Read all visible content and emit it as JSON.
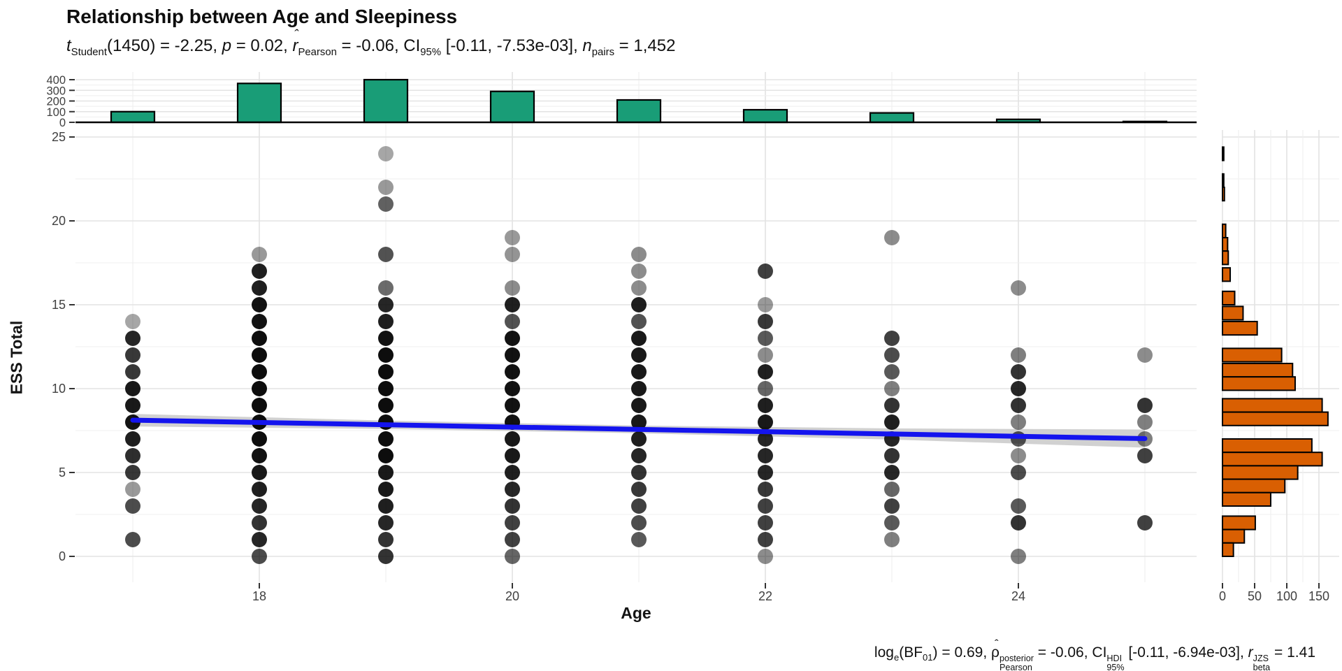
{
  "title": "Relationship between Age and Sleepiness",
  "subtitle_parts": [
    {
      "k": "i",
      "t": "t"
    },
    {
      "k": "sub",
      "t": "Student"
    },
    {
      "k": "n",
      "t": "(1450) = -2.25, "
    },
    {
      "k": "i",
      "t": "p"
    },
    {
      "k": "n",
      "t": " = 0.02, "
    },
    {
      "k": "hat",
      "t": "r",
      "italic": true
    },
    {
      "k": "sub",
      "t": "Pearson"
    },
    {
      "k": "n",
      "t": " = -0.06, CI"
    },
    {
      "k": "sub",
      "t": "95%"
    },
    {
      "k": "n",
      "t": " [-0.11, -7.53e-03], "
    },
    {
      "k": "i",
      "t": "n"
    },
    {
      "k": "sub",
      "t": "pairs"
    },
    {
      "k": "n",
      "t": " = 1,452"
    }
  ],
  "caption_parts": [
    {
      "k": "n",
      "t": "log"
    },
    {
      "k": "sub",
      "t": "e"
    },
    {
      "k": "n",
      "t": "(BF"
    },
    {
      "k": "sub",
      "t": "01"
    },
    {
      "k": "n",
      "t": ") = 0.69, "
    },
    {
      "k": "hat",
      "t": "ρ",
      "italic": false
    },
    {
      "k": "stack",
      "sup": "posterior",
      "sub": "Pearson"
    },
    {
      "k": "n",
      "t": " = -0.06, CI"
    },
    {
      "k": "stack",
      "sup": "HDI",
      "sub": "95%"
    },
    {
      "k": "n",
      "t": " [-0.11, -6.94e-03], "
    },
    {
      "k": "i",
      "t": "r"
    },
    {
      "k": "stack",
      "sup": "JZS",
      "sub": "beta"
    },
    {
      "k": "n",
      "t": " = 1.41"
    }
  ],
  "colors": {
    "top_hist_fill": "#199d77",
    "right_hist_fill": "#d95f02",
    "bar_outline": "#000000",
    "regression_line": "#1414ee",
    "confidence_band": "#c9c9c9",
    "point_color": "#000000",
    "grid_major": "#e3e3e3",
    "grid_minor": "#efefef",
    "tick_label": "#404040",
    "axis_line": "#000000"
  },
  "chart_data": {
    "type": "scatter",
    "title": "Relationship between Age and Sleepiness",
    "xlabel": "Age",
    "ylabel": "ESS Total",
    "x_ticks": [
      18,
      20,
      22,
      24
    ],
    "x_minor": [
      17,
      19,
      21,
      23,
      25
    ],
    "y_ticks": [
      0,
      5,
      10,
      15,
      20,
      25
    ],
    "y_minor": [
      2.5,
      7.5,
      12.5,
      17.5,
      22.5
    ],
    "x_range": [
      16.55,
      25.4
    ],
    "y_range": [
      -1.5,
      25.4
    ],
    "grid": true,
    "n_pairs": 1452,
    "points": [
      [
        17,
        14,
        0.35
      ],
      [
        17,
        13,
        0.85
      ],
      [
        17,
        12,
        0.78
      ],
      [
        17,
        11,
        0.78
      ],
      [
        17,
        10,
        0.9
      ],
      [
        17,
        9,
        0.9
      ],
      [
        17,
        8,
        0.92
      ],
      [
        17,
        7,
        0.88
      ],
      [
        17,
        6,
        0.82
      ],
      [
        17,
        5,
        0.78
      ],
      [
        17,
        4,
        0.4
      ],
      [
        17,
        3,
        0.7
      ],
      [
        17,
        1,
        0.7
      ],
      [
        18,
        18,
        0.4
      ],
      [
        18,
        17,
        0.88
      ],
      [
        18,
        16,
        0.88
      ],
      [
        18,
        15,
        0.93
      ],
      [
        18,
        14,
        0.93
      ],
      [
        18,
        13,
        0.95
      ],
      [
        18,
        12,
        0.95
      ],
      [
        18,
        11,
        0.95
      ],
      [
        18,
        10,
        0.95
      ],
      [
        18,
        9,
        0.95
      ],
      [
        18,
        8,
        0.95
      ],
      [
        18,
        7,
        0.95
      ],
      [
        18,
        6,
        0.93
      ],
      [
        18,
        5,
        0.9
      ],
      [
        18,
        4,
        0.88
      ],
      [
        18,
        3,
        0.85
      ],
      [
        18,
        2,
        0.8
      ],
      [
        18,
        1,
        0.85
      ],
      [
        18,
        0,
        0.7
      ],
      [
        19,
        24,
        0.35
      ],
      [
        19,
        22,
        0.4
      ],
      [
        19,
        21,
        0.62
      ],
      [
        19,
        18,
        0.68
      ],
      [
        19,
        16,
        0.58
      ],
      [
        19,
        15,
        0.85
      ],
      [
        19,
        14,
        0.88
      ],
      [
        19,
        13,
        0.93
      ],
      [
        19,
        12,
        0.95
      ],
      [
        19,
        11,
        0.95
      ],
      [
        19,
        10,
        0.95
      ],
      [
        19,
        9,
        0.95
      ],
      [
        19,
        8,
        0.95
      ],
      [
        19,
        7,
        0.95
      ],
      [
        19,
        6,
        0.95
      ],
      [
        19,
        5,
        0.9
      ],
      [
        19,
        4,
        0.9
      ],
      [
        19,
        3,
        0.88
      ],
      [
        19,
        2,
        0.85
      ],
      [
        19,
        1,
        0.8
      ],
      [
        19,
        0,
        0.8
      ],
      [
        20,
        19,
        0.4
      ],
      [
        20,
        18,
        0.42
      ],
      [
        20,
        16,
        0.45
      ],
      [
        20,
        15,
        0.88
      ],
      [
        20,
        14,
        0.68
      ],
      [
        20,
        13,
        0.93
      ],
      [
        20,
        12,
        0.93
      ],
      [
        20,
        11,
        0.93
      ],
      [
        20,
        10,
        0.93
      ],
      [
        20,
        9,
        0.93
      ],
      [
        20,
        8,
        0.93
      ],
      [
        20,
        7,
        0.9
      ],
      [
        20,
        6,
        0.9
      ],
      [
        20,
        5,
        0.88
      ],
      [
        20,
        4,
        0.85
      ],
      [
        20,
        3,
        0.8
      ],
      [
        20,
        2,
        0.75
      ],
      [
        20,
        1,
        0.75
      ],
      [
        20,
        0,
        0.6
      ],
      [
        21,
        18,
        0.45
      ],
      [
        21,
        17,
        0.45
      ],
      [
        21,
        16,
        0.45
      ],
      [
        21,
        15,
        0.88
      ],
      [
        21,
        14,
        0.68
      ],
      [
        21,
        13,
        0.9
      ],
      [
        21,
        12,
        0.9
      ],
      [
        21,
        11,
        0.9
      ],
      [
        21,
        10,
        0.9
      ],
      [
        21,
        9,
        0.9
      ],
      [
        21,
        8,
        0.9
      ],
      [
        21,
        7,
        0.88
      ],
      [
        21,
        6,
        0.85
      ],
      [
        21,
        5,
        0.8
      ],
      [
        21,
        4,
        0.78
      ],
      [
        21,
        3,
        0.75
      ],
      [
        21,
        2,
        0.7
      ],
      [
        21,
        1,
        0.65
      ],
      [
        22,
        17,
        0.75
      ],
      [
        22,
        15,
        0.4
      ],
      [
        22,
        14,
        0.78
      ],
      [
        22,
        13,
        0.65
      ],
      [
        22,
        12,
        0.45
      ],
      [
        22,
        11,
        0.88
      ],
      [
        22,
        10,
        0.6
      ],
      [
        22,
        9,
        0.88
      ],
      [
        22,
        8,
        0.9
      ],
      [
        22,
        7,
        0.85
      ],
      [
        22,
        6,
        0.85
      ],
      [
        22,
        5,
        0.85
      ],
      [
        22,
        4,
        0.78
      ],
      [
        22,
        3,
        0.75
      ],
      [
        22,
        2,
        0.75
      ],
      [
        22,
        1,
        0.75
      ],
      [
        22,
        0,
        0.45
      ],
      [
        23,
        19,
        0.45
      ],
      [
        23,
        13,
        0.75
      ],
      [
        23,
        12,
        0.7
      ],
      [
        23,
        11,
        0.65
      ],
      [
        23,
        10,
        0.5
      ],
      [
        23,
        9,
        0.8
      ],
      [
        23,
        8,
        0.88
      ],
      [
        23,
        7,
        0.85
      ],
      [
        23,
        6,
        0.8
      ],
      [
        23,
        5,
        0.85
      ],
      [
        23,
        4,
        0.6
      ],
      [
        23,
        3,
        0.75
      ],
      [
        23,
        2,
        0.65
      ],
      [
        23,
        1,
        0.5
      ],
      [
        24,
        16,
        0.45
      ],
      [
        24,
        12,
        0.5
      ],
      [
        24,
        11,
        0.8
      ],
      [
        24,
        10,
        0.85
      ],
      [
        24,
        9,
        0.8
      ],
      [
        24,
        8,
        0.5
      ],
      [
        24,
        7,
        0.65
      ],
      [
        24,
        6,
        0.45
      ],
      [
        24,
        5,
        0.7
      ],
      [
        24,
        3,
        0.65
      ],
      [
        24,
        2,
        0.8
      ],
      [
        24,
        0,
        0.5
      ],
      [
        25,
        12,
        0.45
      ],
      [
        25,
        9,
        0.8
      ],
      [
        25,
        8,
        0.5
      ],
      [
        25,
        7,
        0.5
      ],
      [
        25,
        6,
        0.75
      ],
      [
        25,
        2,
        0.75
      ]
    ],
    "regression": {
      "x_start": 17,
      "x_end": 25,
      "y_start": 8.12,
      "y_end": 7.02,
      "band": [
        {
          "age": 17,
          "half": 9
        },
        {
          "age": 19,
          "half": 6
        },
        {
          "age": 21,
          "half": 5.5
        },
        {
          "age": 23,
          "half": 8
        },
        {
          "age": 25,
          "half": 13
        }
      ]
    },
    "top_histogram": {
      "type": "bar",
      "categories": [
        17,
        18,
        19,
        20,
        21,
        22,
        23,
        24,
        25
      ],
      "values": [
        100,
        365,
        400,
        290,
        210,
        118,
        88,
        28,
        8
      ],
      "y_ticks": [
        0,
        100,
        200,
        300,
        400
      ],
      "y_minor": [
        50,
        150,
        250,
        350
      ]
    },
    "right_histogram": {
      "type": "bar",
      "orientation": "horizontal",
      "x_ticks": [
        0,
        50,
        100,
        150
      ],
      "x_minor": [
        25,
        75,
        125
      ],
      "bars": [
        {
          "ess": 24.0,
          "count": 2
        },
        {
          "ess": 22.4,
          "count": 2
        },
        {
          "ess": 21.6,
          "count": 3
        },
        {
          "ess": 19.4,
          "count": 5
        },
        {
          "ess": 18.6,
          "count": 8
        },
        {
          "ess": 17.8,
          "count": 9
        },
        {
          "ess": 16.8,
          "count": 12
        },
        {
          "ess": 15.4,
          "count": 19
        },
        {
          "ess": 14.5,
          "count": 32
        },
        {
          "ess": 13.6,
          "count": 54
        },
        {
          "ess": 12.0,
          "count": 92
        },
        {
          "ess": 11.1,
          "count": 109
        },
        {
          "ess": 10.3,
          "count": 113
        },
        {
          "ess": 9.0,
          "count": 155
        },
        {
          "ess": 8.2,
          "count": 164
        },
        {
          "ess": 6.6,
          "count": 139
        },
        {
          "ess": 5.8,
          "count": 155
        },
        {
          "ess": 5.0,
          "count": 117
        },
        {
          "ess": 4.2,
          "count": 97
        },
        {
          "ess": 3.4,
          "count": 75
        },
        {
          "ess": 2.0,
          "count": 51
        },
        {
          "ess": 1.2,
          "count": 34
        },
        {
          "ess": 0.4,
          "count": 17
        }
      ]
    }
  }
}
